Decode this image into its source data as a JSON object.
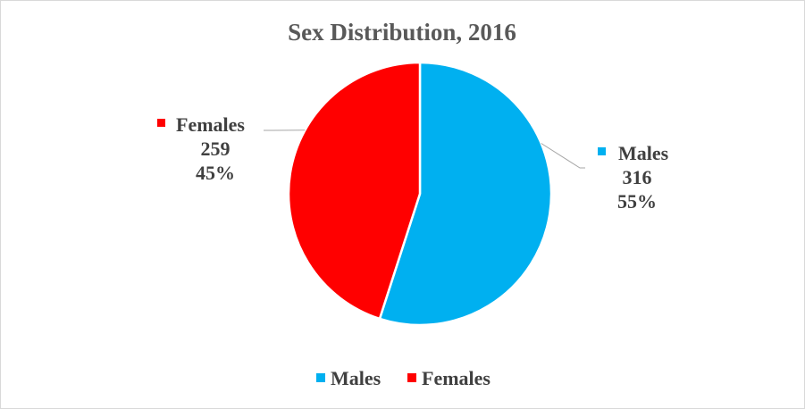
{
  "chart_data": {
    "type": "pie",
    "title": "Sex Distribution, 2016",
    "categories": [
      "Males",
      "Females"
    ],
    "values": [
      316,
      259
    ],
    "percentages": [
      "55%",
      "45%"
    ],
    "colors": [
      "#00B0F0",
      "#FF0000"
    ],
    "legend": {
      "position": "bottom",
      "entries": [
        "Males",
        "Females"
      ]
    }
  }
}
